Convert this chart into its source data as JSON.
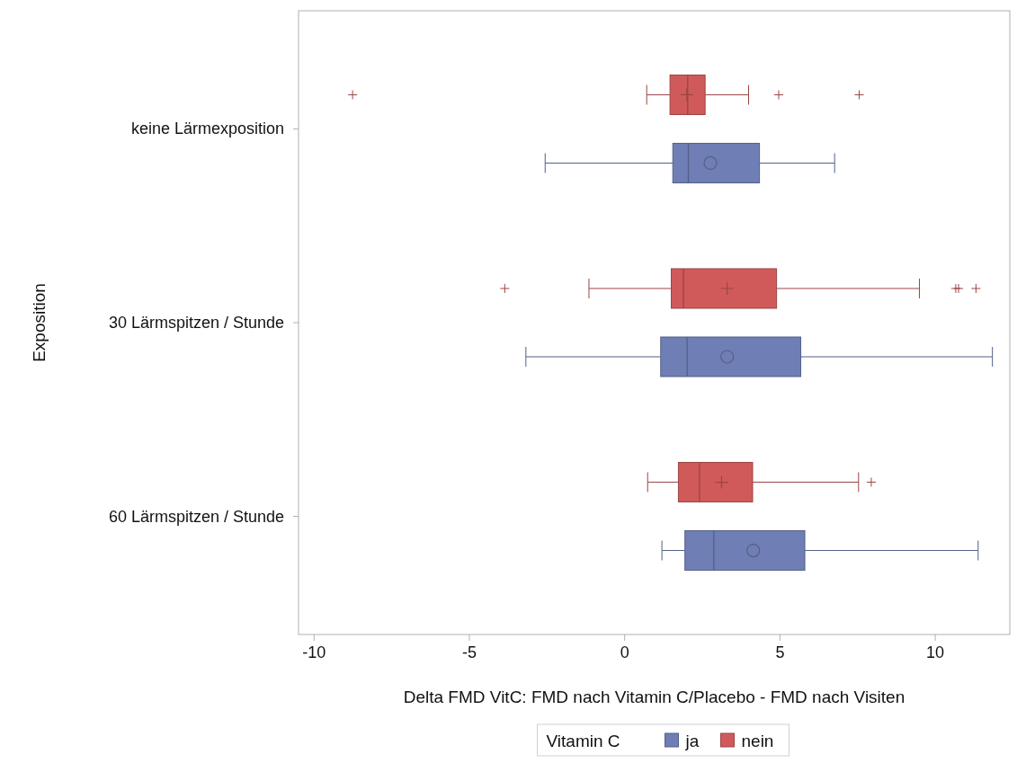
{
  "chart_data": {
    "type": "box",
    "orientation": "horizontal",
    "xlabel": "Delta FMD VitC: FMD nach Vitamin C/Placebo - FMD nach Visiten",
    "ylabel": "Exposition",
    "legend_title": "Vitamin C",
    "legend": "bottom",
    "grid": false,
    "categories": [
      "keine Lärmexposition",
      "30 Lärmspitzen / Stunde",
      "60 Lärmspitzen / Stunde"
    ],
    "xlim": [
      -10.5,
      12.4
    ],
    "xticks": [
      -10,
      -5,
      0,
      5,
      10
    ],
    "series": [
      {
        "name": "ja",
        "color": "#6f7fb5",
        "marker": "circle",
        "boxes": [
          {
            "low": -2.56,
            "q1": 1.55,
            "median": 2.05,
            "q3": 4.34,
            "high": 6.76,
            "mean": 2.76
          },
          {
            "low": -3.18,
            "q1": 1.16,
            "median": 2.01,
            "q3": 5.67,
            "high": 11.84,
            "mean": 3.3
          },
          {
            "low": 1.2,
            "q1": 1.94,
            "median": 2.87,
            "q3": 5.8,
            "high": 11.38,
            "mean": 4.14
          }
        ]
      },
      {
        "name": "nein",
        "color": "#d05a5a",
        "marker": "cross",
        "boxes": [
          {
            "low": 0.71,
            "q1": 1.46,
            "median": 2.03,
            "q3": 2.59,
            "high": 3.99,
            "mean": 2.0,
            "outliers": [
              -8.76,
              4.96,
              7.55
            ]
          },
          {
            "low": -1.15,
            "q1": 1.5,
            "median": 1.89,
            "q3": 4.89,
            "high": 9.49,
            "mean": 3.3,
            "outliers": [
              -3.86,
              10.66,
              10.75,
              11.31
            ]
          },
          {
            "low": 0.74,
            "q1": 1.73,
            "median": 2.41,
            "q3": 4.12,
            "high": 7.53,
            "mean": 3.12,
            "outliers": [
              7.94
            ]
          }
        ]
      }
    ]
  }
}
